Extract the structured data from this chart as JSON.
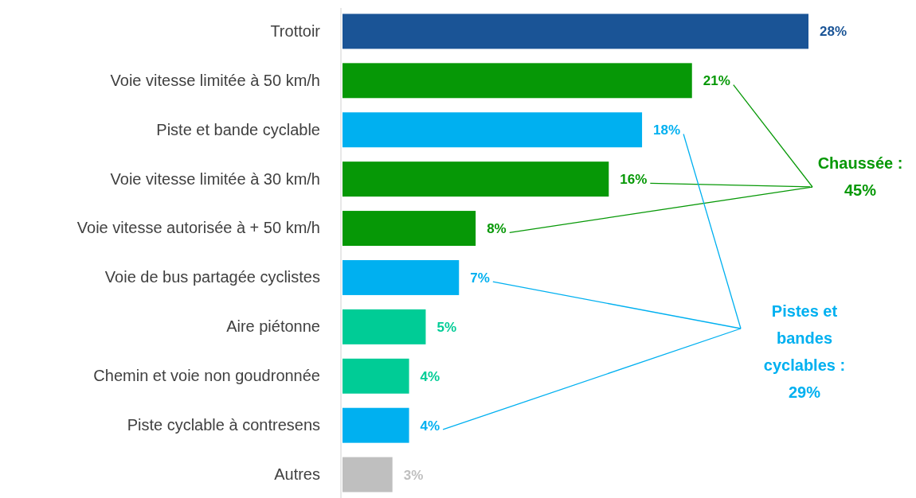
{
  "chart_data": {
    "type": "bar",
    "orientation": "horizontal",
    "data_labels": true,
    "categories": [
      "Trottoir",
      "Voie vitesse limitée à 50 km/h",
      "Piste et bande cyclable",
      "Voie vitesse limitée à 30 km/h",
      "Voie vitesse autorisée à + 50 km/h",
      "Voie de bus partagée cyclistes",
      "Aire piétonne",
      "Chemin et voie non goudronnée",
      "Piste cyclable à contresens",
      "Autres"
    ],
    "values": [
      28,
      21,
      18,
      16,
      8,
      7,
      5,
      4,
      4,
      3
    ],
    "value_labels": [
      "28%",
      "21%",
      "18%",
      "16%",
      "8%",
      "7%",
      "5%",
      "4%",
      "4%",
      "3%"
    ],
    "colors": [
      "#1a5496",
      "#069806",
      "#00b0f0",
      "#069806",
      "#069806",
      "#00b0f0",
      "#00cc96",
      "#00cc96",
      "#00b0f0",
      "#bfbfbf"
    ],
    "annotations": [
      "Chaussée : 45%",
      "Pistes et bandes cyclables : 29%"
    ]
  }
}
